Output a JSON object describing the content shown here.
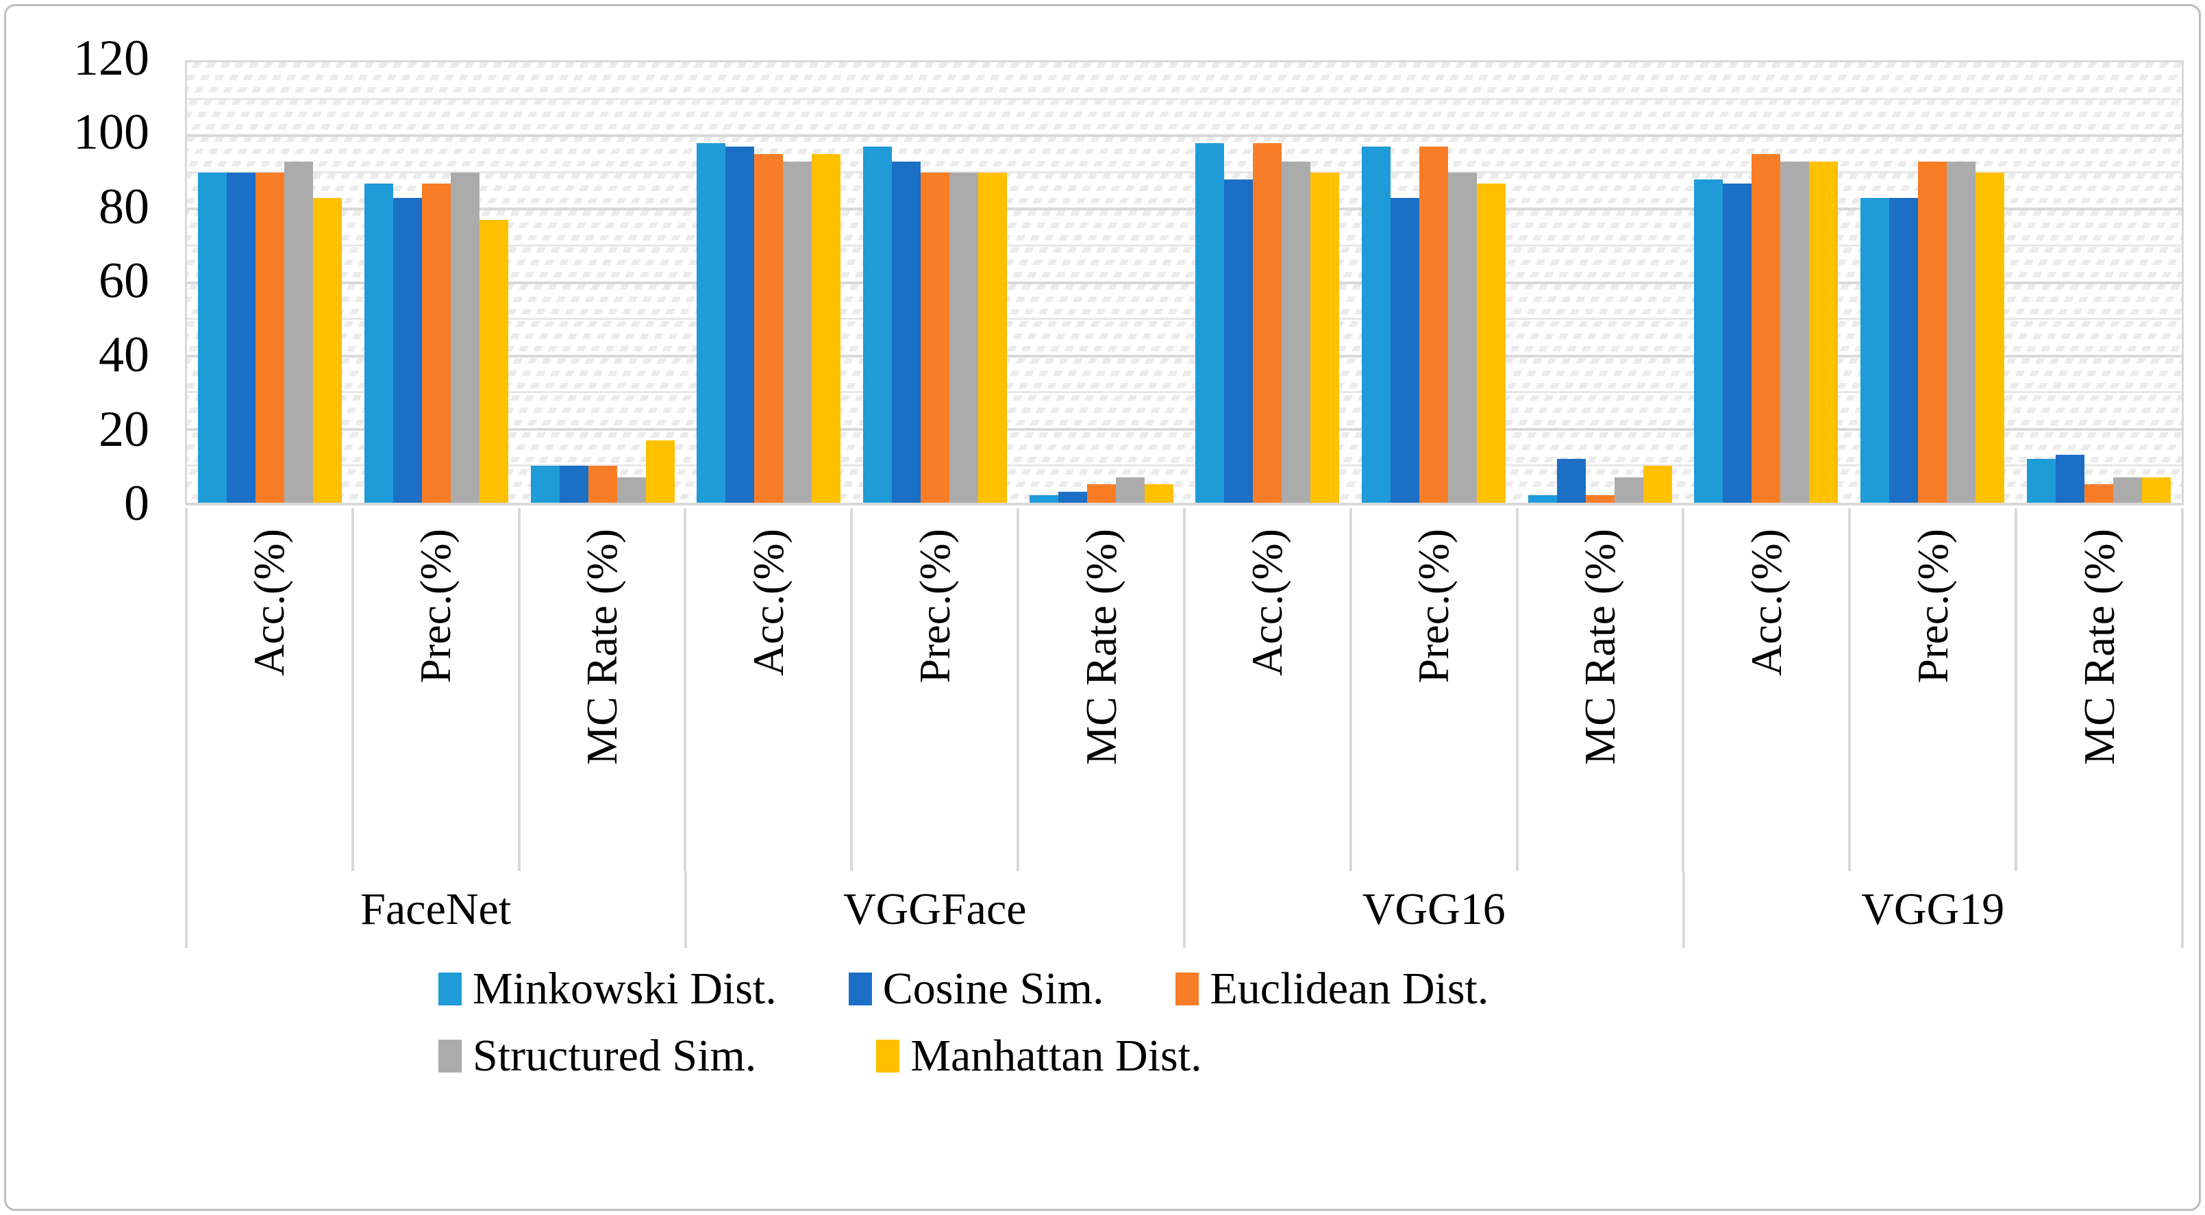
{
  "chart_data": {
    "type": "bar",
    "title": "",
    "xlabel": "",
    "ylabel": "",
    "ylim": [
      0,
      120
    ],
    "yticks": [
      0,
      20,
      40,
      60,
      80,
      100,
      120
    ],
    "grid": "horizontal major gridlines every 20, light hatch pattern background",
    "legend_position": "bottom",
    "series": [
      {
        "name": "Minkowski Dist.",
        "color": "#1F9BD8"
      },
      {
        "name": "Cosine Sim.",
        "color": "#1B6FC5"
      },
      {
        "name": "Euclidean Dist.",
        "color": "#F97D26"
      },
      {
        "name": "Structured Sim.",
        "color": "#ABABAB"
      },
      {
        "name": "Manhattan Dist.",
        "color": "#FFC000"
      }
    ],
    "sections": [
      {
        "model": "FaceNet",
        "metrics": [
          {
            "label": "Acc.(%)",
            "values": [
              90,
              90,
              90,
              93,
              83
            ]
          },
          {
            "label": "Prec.(%)",
            "values": [
              87,
              83,
              87,
              90,
              77
            ]
          },
          {
            "label": "MC Rate (%)",
            "values": [
              10,
              10,
              10,
              7,
              17
            ]
          }
        ]
      },
      {
        "model": "VGGFace",
        "metrics": [
          {
            "label": "Acc.(%)",
            "values": [
              98,
              97,
              95,
              93,
              95
            ]
          },
          {
            "label": "Prec.(%)",
            "values": [
              97,
              93,
              90,
              90,
              90
            ]
          },
          {
            "label": "MC Rate (%)",
            "values": [
              2,
              3,
              5,
              7,
              5
            ]
          }
        ]
      },
      {
        "model": "VGG16",
        "metrics": [
          {
            "label": "Acc.(%)",
            "values": [
              98,
              88,
              98,
              93,
              90
            ]
          },
          {
            "label": "Prec.(%)",
            "values": [
              97,
              83,
              97,
              90,
              87
            ]
          },
          {
            "label": "MC Rate (%)",
            "values": [
              2,
              12,
              2,
              7,
              10
            ]
          }
        ]
      },
      {
        "model": "VGG19",
        "metrics": [
          {
            "label": "Acc.(%)",
            "values": [
              88,
              87,
              95,
              93,
              93
            ]
          },
          {
            "label": "Prec.(%)",
            "values": [
              83,
              83,
              93,
              93,
              90
            ]
          },
          {
            "label": "MC Rate (%)",
            "values": [
              12,
              13,
              5,
              7,
              7
            ]
          }
        ]
      }
    ]
  },
  "legend": {
    "rows": [
      [
        0,
        1,
        2
      ],
      [
        3,
        4
      ]
    ]
  },
  "colors": {
    "gridline_major": "#d9d9d9",
    "gridline_minor": "#e7e7e7",
    "frame_border": "#bdbdbd",
    "axis_text": "#000000",
    "background": "#ffffff"
  }
}
